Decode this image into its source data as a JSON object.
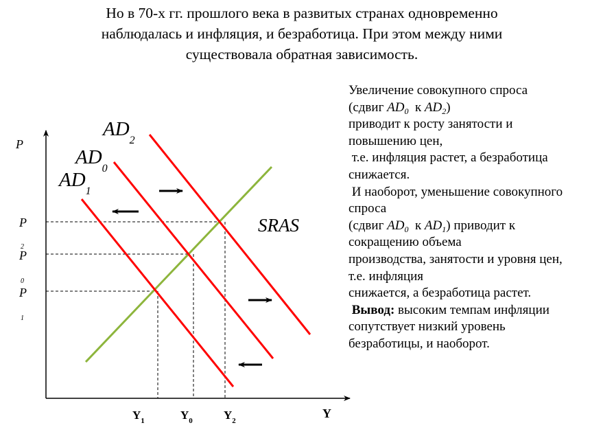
{
  "title": {
    "lines": [
      "Но в 70-х гг. прошлого века в развитых странах одновременно",
      "наблюдалась и инфляция,  и безработица.  При этом между ними",
      "существовала обратная зависимость."
    ]
  },
  "diagram": {
    "y_axis_label": "P",
    "x_axis_label": "Y",
    "curves": {
      "ad2": {
        "base": "AD",
        "sub": "2"
      },
      "ad0": {
        "base": "AD",
        "sub": "0"
      },
      "ad1": {
        "base": "AD",
        "sub": "1"
      },
      "sras": "SRAS"
    },
    "price_levels": [
      {
        "base": "P",
        "sub": "2"
      },
      {
        "base": "P",
        "sub": "0"
      },
      {
        "base": "P",
        "sub": "1"
      }
    ],
    "output_levels": [
      {
        "base": "Y",
        "sub": "1"
      },
      {
        "base": "Y",
        "sub": "0"
      },
      {
        "base": "Y",
        "sub": "2"
      }
    ],
    "colors": {
      "ad": "#ff0000",
      "sras": "#8db53c",
      "axes": "#000000"
    }
  },
  "explanation": {
    "l1": "Увеличение совокупного спроса",
    "l2a": "(сдвиг ",
    "l2b": "AD",
    "l2c": "0",
    "l2d": "  к ",
    "l2e": "AD",
    "l2f": "2",
    "l2g": ")",
    "l3": "приводит к росту занятости и",
    "l4": "повышению цен,",
    "l5": " т.е. инфляция растет, а безработица",
    "l6": "снижается.",
    "l7": " И наоборот, уменьшение совокупного",
    "l8": "спроса",
    "l9a": "(сдвиг ",
    "l9b": "AD",
    "l9c": "0",
    "l9d": "  к ",
    "l9e": "AD",
    "l9f": "1",
    "l9g": ") приводит к",
    "l10": "сокращению объема",
    "l11": "производства, занятости и уровня цен,",
    "l12": "т.е. инфляция",
    "l13": "снижается, а безработица растет.",
    "l14a": " Вывод:",
    "l14b": " высоким темпам инфляции",
    "l15": "сопутствует низкий уровень",
    "l16": "безработицы, и наоборот."
  }
}
